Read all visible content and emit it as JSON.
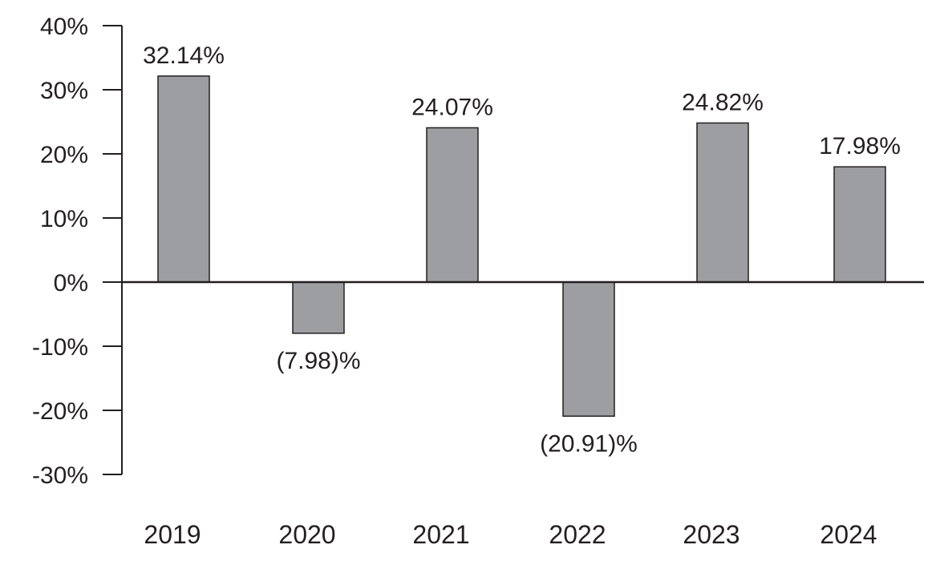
{
  "chart_data": {
    "type": "bar",
    "title": "",
    "xlabel": "",
    "ylabel": "",
    "categories": [
      "2019",
      "2020",
      "2021",
      "2022",
      "2023",
      "2024"
    ],
    "values": [
      32.14,
      -7.98,
      24.07,
      -20.91,
      24.82,
      17.98
    ],
    "data_labels": [
      "32.14%",
      "(7.98)%",
      "24.07%",
      "(20.91)%",
      "24.82%",
      "17.98%"
    ],
    "ylim": [
      -30,
      40
    ],
    "yticks": [
      40,
      30,
      20,
      10,
      0,
      -10,
      -20,
      -30
    ],
    "ytick_labels": [
      "40%",
      "30%",
      "20%",
      "10%",
      "0%",
      "-10%",
      "-20%",
      "-30%"
    ],
    "grid": false,
    "legend": "none",
    "colors": {
      "bar_fill": "#9d9ea1",
      "bar_stroke": "#231f20",
      "axis": "#231f20",
      "text": "#231f20"
    }
  }
}
